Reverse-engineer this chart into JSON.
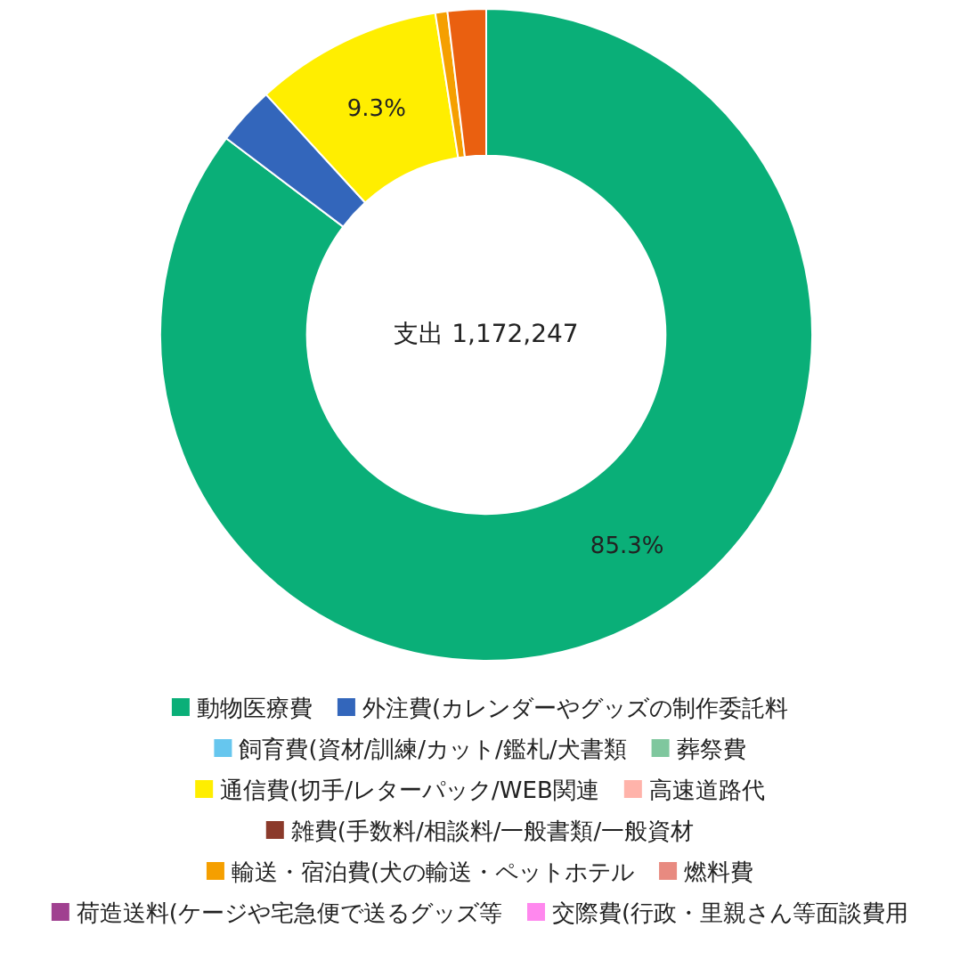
{
  "chart_data": {
    "type": "donut",
    "categories": [
      "動物医療費",
      "外注費(カレンダーやグッズの制作委託料",
      "飼育費(資材/訓練/カット/鑑札/犬書類",
      "葬祭費",
      "通信費(切手/レターパック/WEB関連",
      "高速道路代",
      "雑費(手数料/相談料/一般書類/一般資材",
      "輸送・宿泊費(犬の輸送・ペットホテル",
      "燃料費",
      "荷造送料(ケージや宅急便で送るグッズ等",
      "交際費(行政・里親さん等面談費用",
      null
    ],
    "values": [
      85.3,
      2.9,
      0,
      0,
      9.3,
      0,
      0,
      0.6,
      0,
      0,
      0,
      1.9
    ],
    "colors": [
      "#0aaf78",
      "#3366bb",
      "#66c6ee",
      "#7fc79e",
      "#ffee00",
      "#ffb3aa",
      "#8b3a2b",
      "#f59f00",
      "#e88a80",
      "#a04090",
      "#ff88ee",
      "#ea6010"
    ],
    "value_labels": [
      "85.3%",
      null,
      null,
      null,
      "9.3%",
      null,
      null,
      null,
      null,
      null,
      null,
      null
    ],
    "annotations": [
      "支出 1,172,247"
    ],
    "legend": "bottom"
  }
}
